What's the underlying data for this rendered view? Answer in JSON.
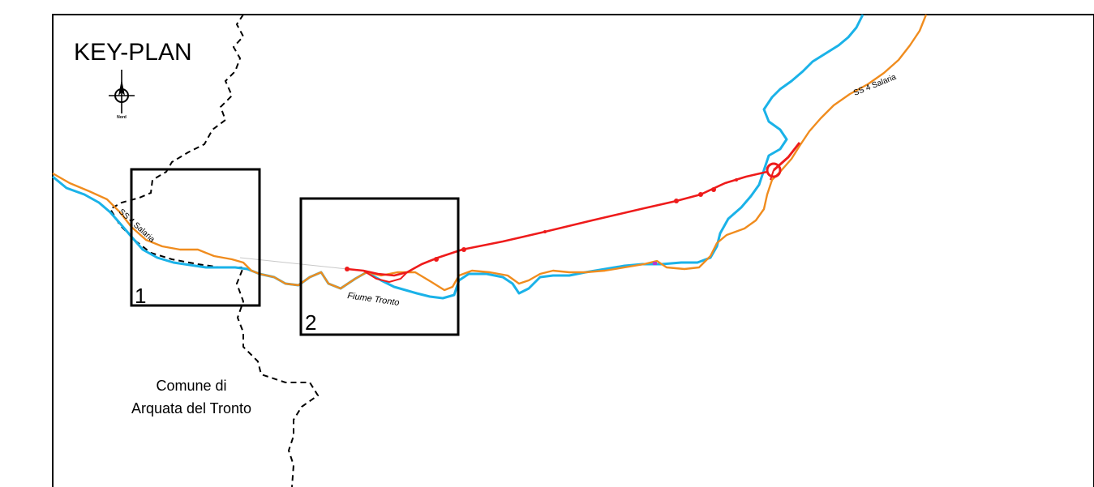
{
  "title": "KEY-PLAN",
  "north_label": "Nord",
  "frames": [
    {
      "number": "1"
    },
    {
      "number": "2"
    }
  ],
  "labels": {
    "road_west": "SS 4 Salaria",
    "road_east": "SS 4 Salaria",
    "river": "Fiume Tronto",
    "comune_line1": "Comune di",
    "comune_line2": "Arquata del Tronto"
  },
  "colors": {
    "river": "#1ab2e8",
    "road": "#f08c1e",
    "project": "#ee1b1b",
    "boundary": "#000000",
    "frame": "#000000"
  }
}
